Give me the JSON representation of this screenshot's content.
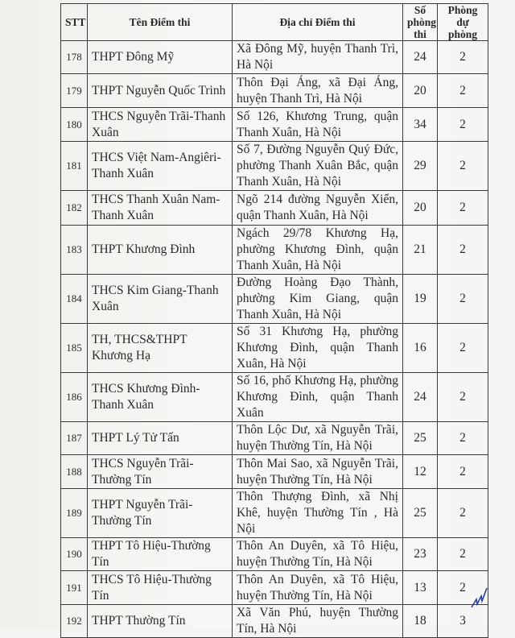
{
  "headers": {
    "stt": "STT",
    "name": "Tên Điểm thi",
    "address": "Địa chỉ Điểm thi",
    "rooms": "Số phòng thi",
    "reserve": "Phòng dự phòng"
  },
  "rows": [
    {
      "stt": "178",
      "name": "THPT Đông Mỹ",
      "address": "Xã Đông Mỹ, huyện Thanh Trì, Hà Nội",
      "rooms": "24",
      "reserve": "2"
    },
    {
      "stt": "179",
      "name": "THPT Nguyễn Quốc Trinh",
      "address": "Thôn Đại Áng, xã Đại Áng, huyện Thanh Trì, Hà Nội",
      "rooms": "20",
      "reserve": "2"
    },
    {
      "stt": "180",
      "name": "THCS Nguyễn Trãi-Thanh Xuân",
      "address": "Số 126, Khương Trung, quận Thanh Xuân, Hà Nội",
      "rooms": "34",
      "reserve": "2"
    },
    {
      "stt": "181",
      "name": "THCS Việt Nam-Angiêri-Thanh Xuân",
      "address": "Số 7, Đường Nguyễn Quý Đức, phường Thanh Xuân Bắc, quận Thanh Xuân, Hà Nội",
      "rooms": "29",
      "reserve": "2"
    },
    {
      "stt": "182",
      "name": "THCS Thanh Xuân Nam-Thanh Xuân",
      "address": "Ngõ 214 đường Nguyễn Xiển, quận Thanh Xuân, Hà Nội",
      "rooms": "20",
      "reserve": "2"
    },
    {
      "stt": "183",
      "name": "THPT Khương Đình",
      "address": "Ngách 29/78 Khương Hạ, phường Khương Đình, quận Thanh Xuân, Hà Nội",
      "rooms": "21",
      "reserve": "2"
    },
    {
      "stt": "184",
      "name": "THCS Kim Giang-Thanh Xuân",
      "address": "Đường Hoàng Đạo Thành, phường Kim Giang, quận Thanh Xuân, Hà Nội",
      "rooms": "19",
      "reserve": "2"
    },
    {
      "stt": "185",
      "name": "TH, THCS&THPT Khương Hạ",
      "address": "Số 31 Khương Hạ, phường Khương Đình, quận Thanh Xuân, Hà Nội",
      "rooms": "16",
      "reserve": "2"
    },
    {
      "stt": "186",
      "name": "THCS Khương Đình-Thanh Xuân",
      "address": "Số 16, phố Khương Hạ, phường Khương Đình, quận Thanh Xuân",
      "rooms": "24",
      "reserve": "2"
    },
    {
      "stt": "187",
      "name": "THPT Lý Tử Tấn",
      "address": "Thôn Lộc Dư, xã Nguyễn Trãi, huyện Thường Tín, Hà Nội",
      "rooms": "25",
      "reserve": "2"
    },
    {
      "stt": "188",
      "name": "THCS Nguyễn Trãi-Thường Tín",
      "address": "Thôn Mai Sao, xã Nguyễn Trãi, huyện Thường Tín, Hà Nội",
      "rooms": "12",
      "reserve": "2"
    },
    {
      "stt": "189",
      "name": "THPT Nguyễn Trãi-Thường Tín",
      "address": "Thôn Thượng Đình, xã Nhị Khê, huyện Thường Tín , Hà Nội",
      "rooms": "25",
      "reserve": "2"
    },
    {
      "stt": "190",
      "name": "THPT Tô Hiệu-Thường Tín",
      "address": "Thôn An Duyên, xã Tô Hiệu, huyện Thường Tín, Hà Nội",
      "rooms": "23",
      "reserve": "2"
    },
    {
      "stt": "191",
      "name": "THCS Tô Hiệu-Thường Tín",
      "address": "Thôn An Duyên, xã Tô Hiệu, huyện Thường Tín, Hà Nội",
      "rooms": "13",
      "reserve": "2"
    },
    {
      "stt": "192",
      "name": "THPT Thường Tín",
      "address": "Xã Văn Phú, huyện Thường Tín, Hà Nội",
      "rooms": "18",
      "reserve": "3"
    }
  ],
  "colors": {
    "ink": "#2a2a2a",
    "signature": "#2b3f9e"
  }
}
